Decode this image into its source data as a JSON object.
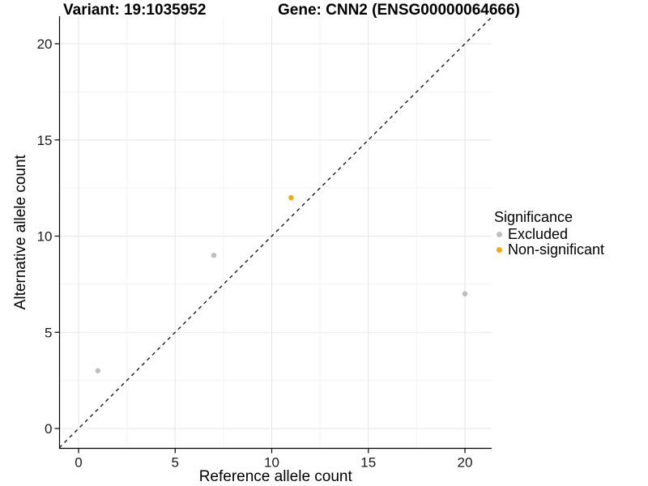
{
  "titles": {
    "variant": "Variant: 19:1035952",
    "gene": "Gene: CNN2 (ENSG00000064666)"
  },
  "legend": {
    "title": "Significance",
    "items": [
      {
        "label": "Excluded",
        "color": "#BEBEBE"
      },
      {
        "label": "Non-significant",
        "color": "#FFA500"
      }
    ]
  },
  "colors": {
    "excluded_point": "#BEBEBE",
    "non_significant_point": "#FFA500",
    "grid_major": "#E6E6E6",
    "grid_minor": "#F3F3F3",
    "axis_line": "#000000",
    "tick_label": "#1A1A1A",
    "identity_line": "#1A1A1A"
  },
  "chart_data": {
    "type": "scatter",
    "title": "Variant: 19:1035952    Gene: CNN2 (ENSG00000064666)",
    "xlabel": "Reference allele count",
    "ylabel": "Alternative allele count",
    "xlim": [
      -1,
      21.35
    ],
    "ylim": [
      -1,
      21.35
    ],
    "x_ticks": [
      0,
      5,
      10,
      15,
      20
    ],
    "y_ticks": [
      0,
      5,
      10,
      15,
      20
    ],
    "x_minor_ticks": [
      2.5,
      7.5,
      12.5,
      17.5
    ],
    "y_minor_ticks": [
      2.5,
      7.5,
      12.5,
      17.5
    ],
    "grid": true,
    "legend_position": "right",
    "identity_line": {
      "style": "dashed",
      "slope": 1,
      "intercept": 0
    },
    "points": [
      {
        "x": 1,
        "y": 3,
        "group": "Excluded"
      },
      {
        "x": 7,
        "y": 9,
        "group": "Excluded"
      },
      {
        "x": 11,
        "y": 12,
        "group": "Non-significant"
      },
      {
        "x": 20,
        "y": 7,
        "group": "Excluded"
      }
    ]
  }
}
